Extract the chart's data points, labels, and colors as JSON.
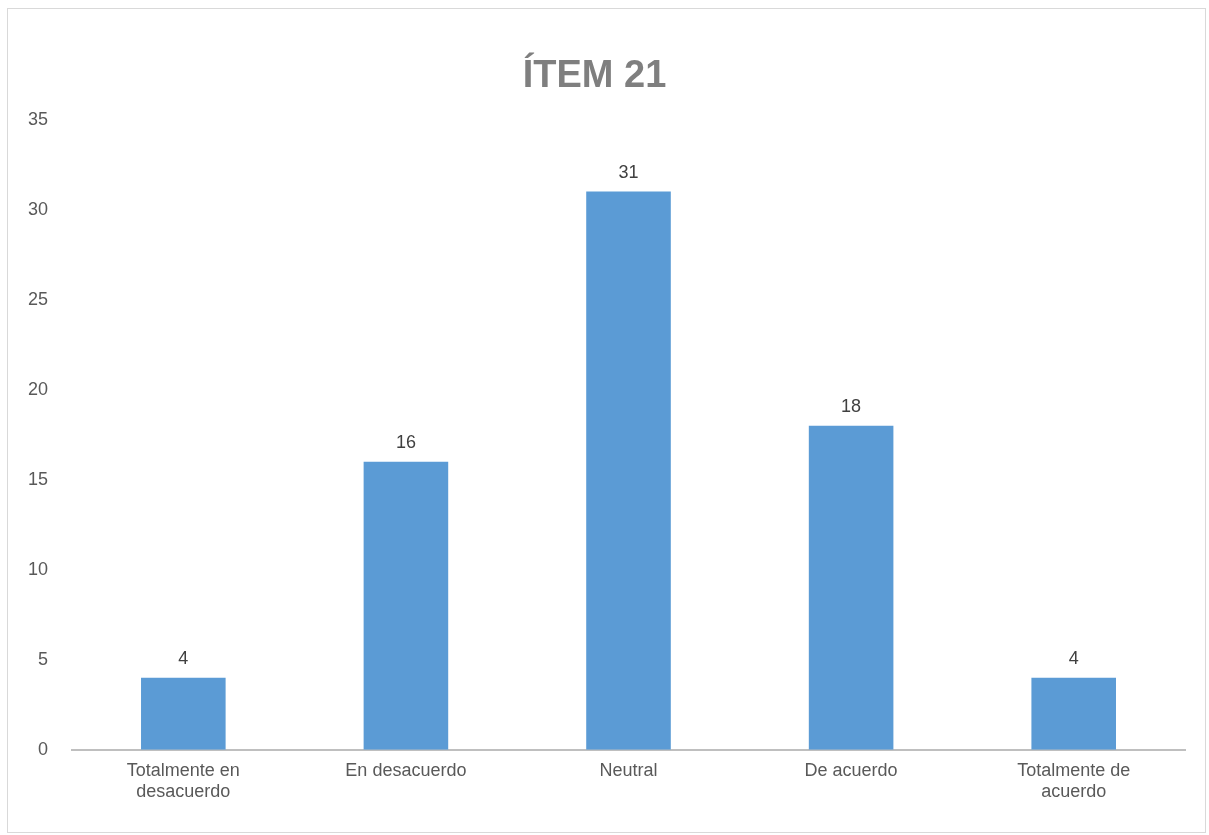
{
  "chart_data": {
    "type": "bar",
    "title": "ÍTEM 21",
    "categories": [
      "Totalmente en desacuerdo",
      "En desacuerdo",
      "Neutral",
      "De acuerdo",
      "Totalmente de acuerdo"
    ],
    "values": [
      4,
      16,
      31,
      18,
      4
    ],
    "color": "#5b9bd5",
    "ylim": [
      0,
      35
    ],
    "yticks": [
      0,
      5,
      10,
      15,
      20,
      25,
      30,
      35
    ],
    "data_labels": true
  }
}
